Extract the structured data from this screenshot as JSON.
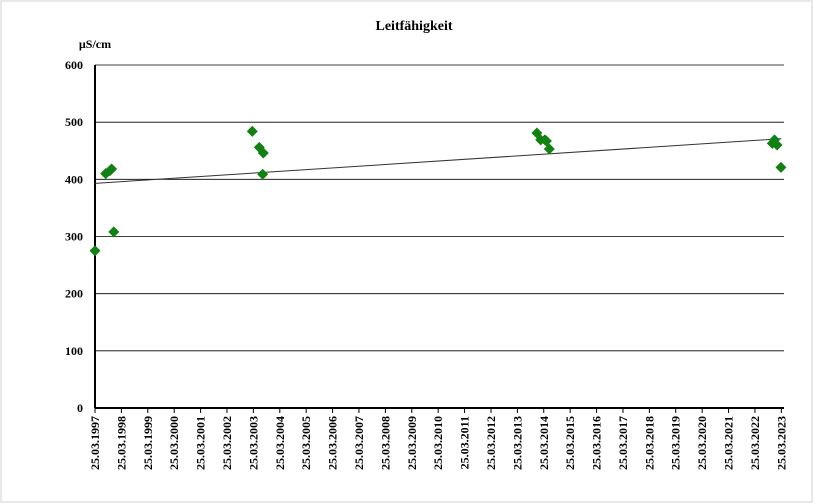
{
  "chart_data": {
    "type": "scatter",
    "title": "Leitfähigkeit",
    "y_label": "µS/cm",
    "x": [
      "1997-03-25",
      "1997-08-20",
      "1997-10-15",
      "1997-11-10",
      "1997-12-10",
      "2003-03-10",
      "2003-06-15",
      "2003-08-10",
      "2003-08-01",
      "2013-12-20",
      "2014-02-10",
      "2014-04-10",
      "2014-05-01",
      "2014-06-10",
      "2022-11-20",
      "2022-12-20",
      "2023-01-25",
      "2023-03-20"
    ],
    "series": [
      {
        "color": "#128012",
        "values": [
          275,
          410,
          415,
          418,
          308,
          484,
          456,
          446,
          409,
          481,
          469,
          469,
          467,
          453,
          463,
          469,
          460,
          421
        ]
      }
    ],
    "trendline": {
      "x": [
        "1997-03-25",
        "2023-03-25"
      ],
      "values": [
        393,
        471
      ],
      "color": "#333333"
    },
    "xlim": [
      "1997-03-25",
      "2023-05-01"
    ],
    "xticks": [
      {
        "value": "1997-03-25",
        "label": "25.03.1997"
      },
      {
        "value": "1998-03-25",
        "label": "25.03.1998"
      },
      {
        "value": "1999-03-25",
        "label": "25.03.1999"
      },
      {
        "value": "2000-03-25",
        "label": "25.03.2000"
      },
      {
        "value": "2001-03-25",
        "label": "25.03.2001"
      },
      {
        "value": "2002-03-25",
        "label": "25.03.2002"
      },
      {
        "value": "2003-03-25",
        "label": "25.03.2003"
      },
      {
        "value": "2004-03-25",
        "label": "25.03.2004"
      },
      {
        "value": "2005-03-25",
        "label": "25.03.2005"
      },
      {
        "value": "2006-03-25",
        "label": "25.03.2006"
      },
      {
        "value": "2007-03-25",
        "label": "25.03.2007"
      },
      {
        "value": "2008-03-25",
        "label": "25.03.2008"
      },
      {
        "value": "2009-03-25",
        "label": "25.03.2009"
      },
      {
        "value": "2010-03-25",
        "label": "25.03.2010"
      },
      {
        "value": "2011-03-25",
        "label": "25.03.2011"
      },
      {
        "value": "2012-03-25",
        "label": "25.03.2012"
      },
      {
        "value": "2013-03-25",
        "label": "25.03.2013"
      },
      {
        "value": "2014-03-25",
        "label": "25.03.2014"
      },
      {
        "value": "2015-03-25",
        "label": "25.03.2015"
      },
      {
        "value": "2016-03-25",
        "label": "25.03.2016"
      },
      {
        "value": "2017-03-25",
        "label": "25.03.2017"
      },
      {
        "value": "2018-03-25",
        "label": "25.03.2018"
      },
      {
        "value": "2019-03-25",
        "label": "25.03.2019"
      },
      {
        "value": "2020-03-25",
        "label": "25.03.2020"
      },
      {
        "value": "2021-03-25",
        "label": "25.03.2021"
      },
      {
        "value": "2022-03-25",
        "label": "25.03.2022"
      },
      {
        "value": "2023-03-25",
        "label": "25.03.2023"
      }
    ],
    "ylim": [
      0,
      600
    ],
    "yticks": [
      0,
      100,
      200,
      300,
      400,
      500,
      600
    ],
    "grid": true
  }
}
